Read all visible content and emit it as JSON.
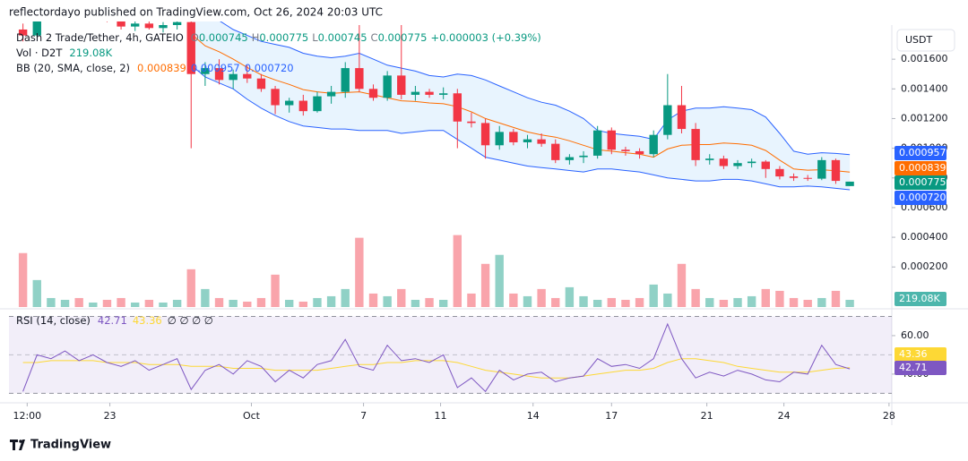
{
  "header": {
    "published": "reflectordayo published on TradingView.com, Oct 26, 2024 20:03 UTC",
    "brand": "TradingView"
  },
  "chart_data": {
    "type": "candlestick",
    "symbol": "Dash 2 Trade/Tether, 4h, GATEIO",
    "ohlc_legend": {
      "o": "O",
      "h": "H",
      "l": "L",
      "c": "C",
      "change": "+0.000003 (+0.39%)"
    },
    "currency": "USDT",
    "x": [
      0,
      1,
      2,
      3,
      4,
      5,
      6,
      7,
      8,
      9,
      10,
      11,
      12,
      13,
      14,
      15,
      16,
      17,
      18,
      19,
      20,
      21,
      22,
      23,
      24,
      25,
      26,
      27,
      28,
      29,
      30,
      31,
      32,
      33,
      34,
      35,
      36,
      37,
      38,
      39,
      40,
      41,
      42,
      43,
      44,
      45,
      46,
      47,
      48,
      49,
      50,
      51,
      52,
      53,
      54,
      55,
      56,
      57,
      58,
      59
    ],
    "xlim": [
      -1,
      62
    ],
    "xticks": [
      {
        "value": 0.3,
        "label": "12:00"
      },
      {
        "value": 6.2,
        "label": "23"
      },
      {
        "value": 16.3,
        "label": "Oct"
      },
      {
        "value": 24.3,
        "label": "7"
      },
      {
        "value": 29.8,
        "label": "11"
      },
      {
        "value": 36.4,
        "label": "14"
      },
      {
        "value": 42.0,
        "label": "17"
      },
      {
        "value": 48.8,
        "label": "21"
      },
      {
        "value": 54.3,
        "label": "24"
      },
      {
        "value": 61.8,
        "label": "28"
      }
    ],
    "open": [
      0.0018,
      0.00176,
      0.00188,
      0.00192,
      0.00195,
      0.00191,
      0.00194,
      0.00187,
      0.00182,
      0.00184,
      0.00181,
      0.00183,
      0.00185,
      0.0015,
      0.00154,
      0.00146,
      0.0015,
      0.00147,
      0.0014,
      0.00129,
      0.00132,
      0.00125,
      0.00135,
      0.00138,
      0.00154,
      0.0014,
      0.00134,
      0.00149,
      0.00136,
      0.00138,
      0.00136,
      0.00137,
      0.00118,
      0.00117,
      0.00102,
      0.00111,
      0.00104,
      0.00106,
      0.00103,
      0.00092,
      0.00094,
      0.00095,
      0.00112,
      0.00099,
      0.00098,
      0.00096,
      0.00109,
      0.00129,
      0.00113,
      0.00092,
      0.00093,
      0.00088,
      0.0009,
      0.00091,
      0.00086,
      0.00081,
      0.0008,
      0.000795,
      0.00092,
      0.000745
    ],
    "high": [
      0.00184,
      0.0019,
      0.00195,
      0.00198,
      0.00199,
      0.00196,
      0.00198,
      0.0019,
      0.00186,
      0.00187,
      0.00185,
      0.00187,
      0.00188,
      0.00158,
      0.0016,
      0.00153,
      0.00156,
      0.0015,
      0.00142,
      0.00134,
      0.00136,
      0.00138,
      0.00142,
      0.00158,
      0.00183,
      0.00143,
      0.00152,
      0.00183,
      0.00142,
      0.0014,
      0.00141,
      0.0014,
      0.00124,
      0.0012,
      0.00115,
      0.00113,
      0.00109,
      0.0011,
      0.00106,
      0.00096,
      0.00098,
      0.00115,
      0.00114,
      0.00101,
      0.001,
      0.00112,
      0.0015,
      0.00142,
      0.00117,
      0.00096,
      0.00095,
      0.00092,
      0.00093,
      0.00092,
      0.00088,
      0.00083,
      0.00082,
      0.00094,
      0.00093,
      0.000775
    ],
    "low": [
      0.00172,
      0.00175,
      0.00186,
      0.00189,
      0.0019,
      0.00188,
      0.00185,
      0.0018,
      0.00179,
      0.0018,
      0.00178,
      0.0018,
      0.001,
      0.00142,
      0.00143,
      0.0014,
      0.00144,
      0.00138,
      0.00123,
      0.00124,
      0.00122,
      0.00124,
      0.0013,
      0.00134,
      0.00138,
      0.00132,
      0.00132,
      0.00133,
      0.00132,
      0.00134,
      0.00133,
      0.001,
      0.00114,
      0.00093,
      0.00099,
      0.00102,
      0.001,
      0.00101,
      0.0009,
      0.00089,
      0.0009,
      0.00093,
      0.00096,
      0.00095,
      0.00093,
      0.00094,
      0.00106,
      0.0011,
      0.00088,
      0.00089,
      0.00086,
      0.00086,
      0.00087,
      0.0008,
      0.00079,
      0.00078,
      0.00078,
      0.000785,
      0.00076,
      0.000745
    ],
    "close": [
      0.00176,
      0.00188,
      0.00192,
      0.00195,
      0.00191,
      0.00194,
      0.00187,
      0.00182,
      0.00184,
      0.00181,
      0.00183,
      0.00185,
      0.0015,
      0.00154,
      0.00146,
      0.0015,
      0.00147,
      0.0014,
      0.00129,
      0.00132,
      0.00125,
      0.00135,
      0.00138,
      0.00154,
      0.0014,
      0.00134,
      0.00149,
      0.00136,
      0.00138,
      0.00136,
      0.00137,
      0.00118,
      0.00117,
      0.00102,
      0.00111,
      0.00104,
      0.00106,
      0.00103,
      0.00092,
      0.00094,
      0.00095,
      0.00112,
      0.00099,
      0.00098,
      0.00096,
      0.00109,
      0.00129,
      0.00113,
      0.00092,
      0.00093,
      0.00088,
      0.0009,
      0.00091,
      0.00086,
      0.00081,
      0.0008,
      0.000795,
      0.00092,
      0.00078,
      0.000775
    ],
    "ylim": [
      -7e-05,
      0.00183
    ],
    "yticks": [
      {
        "value": 0.0016,
        "label": "0.001600"
      },
      {
        "value": 0.0014,
        "label": "0.001400"
      },
      {
        "value": 0.0012,
        "label": "0.001200"
      },
      {
        "value": 0.001,
        "label": "0.001000"
      },
      {
        "value": 0.0008,
        "label": "0.000800"
      },
      {
        "value": 0.0006,
        "label": "0.000600"
      },
      {
        "value": 0.0004,
        "label": "0.000400"
      },
      {
        "value": 0.0002,
        "label": "0.000200"
      }
    ],
    "up_color": "#089981",
    "down_color": "#f23645",
    "bollinger": {
      "name": "BB (20, SMA, close, 2)",
      "band_color": "#2962ff",
      "basis_color": "#ff6d00",
      "fill": "rgba(33,150,243,0.1)",
      "upper": [
        null,
        null,
        null,
        null,
        null,
        null,
        null,
        null,
        null,
        null,
        null,
        null,
        0.00198,
        0.0019,
        0.00186,
        0.0018,
        0.00176,
        0.00172,
        0.0017,
        0.00168,
        0.00164,
        0.00162,
        0.00161,
        0.00162,
        0.00164,
        0.0016,
        0.00156,
        0.00154,
        0.00152,
        0.00149,
        0.00148,
        0.0015,
        0.00149,
        0.00146,
        0.00142,
        0.00138,
        0.00134,
        0.00131,
        0.00129,
        0.00125,
        0.0012,
        0.00112,
        0.0011,
        0.00109,
        0.00108,
        0.00106,
        0.00119,
        0.00125,
        0.00127,
        0.00127,
        0.00128,
        0.00127,
        0.00126,
        0.00121,
        0.0011,
        0.00098,
        0.00096,
        0.00097,
        0.000965,
        0.000957
      ],
      "middle": [
        null,
        null,
        null,
        null,
        null,
        null,
        null,
        null,
        null,
        null,
        null,
        null,
        0.00177,
        0.00169,
        0.00165,
        0.0016,
        0.001545,
        0.001495,
        0.00146,
        0.00143,
        0.001395,
        0.00138,
        0.00137,
        0.001375,
        0.00138,
        0.00136,
        0.00134,
        0.00132,
        0.001315,
        0.001305,
        0.0013,
        0.00128,
        0.001245,
        0.0012,
        0.00117,
        0.00114,
        0.00111,
        0.00109,
        0.001075,
        0.00105,
        0.00102,
        0.00099,
        0.00098,
        0.00097,
        0.00096,
        0.00094,
        0.000995,
        0.00102,
        0.001025,
        0.001025,
        0.001035,
        0.00103,
        0.00102,
        0.000985,
        0.00092,
        0.00086,
        0.000852,
        0.000855,
        0.000848,
        0.000839
      ],
      "lower": [
        null,
        null,
        null,
        null,
        null,
        null,
        null,
        null,
        null,
        null,
        null,
        null,
        0.00156,
        0.00148,
        0.00144,
        0.0014,
        0.00133,
        0.00127,
        0.00122,
        0.00118,
        0.00115,
        0.00114,
        0.00113,
        0.00113,
        0.00112,
        0.00112,
        0.00112,
        0.0011,
        0.00111,
        0.00112,
        0.00112,
        0.00106,
        0.001,
        0.00094,
        0.00092,
        0.0009,
        0.00088,
        0.00087,
        0.00086,
        0.00085,
        0.00084,
        0.00086,
        0.00086,
        0.00085,
        0.00084,
        0.00082,
        0.0008,
        0.00079,
        0.00078,
        0.00078,
        0.00079,
        0.00079,
        0.00078,
        0.00076,
        0.00074,
        0.00074,
        0.000745,
        0.00074,
        0.00073,
        0.00072
      ],
      "lower_last_label": "0.000720"
    },
    "volume": {
      "name": "Vol · D2T",
      "last_label": "219.08K",
      "ylim": [
        0,
        6000000
      ],
      "label_color": "#4db6ac",
      "values": [
        1644000,
        822000,
        274000,
        219200,
        274000,
        137000,
        219200,
        274000,
        137000,
        219200,
        137000,
        219200,
        1150800,
        548000,
        274000,
        219200,
        164400,
        274000,
        986400,
        219200,
        164400,
        274000,
        328800,
        548000,
        2109800,
        411000,
        328800,
        548000,
        219200,
        274000,
        219200,
        2192000,
        411000,
        1315200,
        1589200,
        411000,
        328800,
        548000,
        274000,
        602800,
        328800,
        219200,
        274000,
        219200,
        274000,
        685000,
        411000,
        1315200,
        548000,
        274000,
        219200,
        274000,
        328800,
        548000,
        493200,
        274000,
        219200,
        274000,
        493200,
        219080
      ]
    },
    "rsi": {
      "name": "RSI (14, close)",
      "extra": "∅ ∅ ∅ ∅",
      "color": "#7e57c2",
      "ma_color": "#fdd835",
      "ylim": [
        26,
        73
      ],
      "yticks": [
        {
          "value": 60,
          "label": "60.00"
        },
        {
          "value": 40,
          "label": "40.00"
        }
      ],
      "bands": [
        70,
        50,
        30
      ],
      "values": [
        31,
        50,
        48,
        52,
        47,
        50,
        46,
        44,
        47,
        42,
        45,
        48,
        32,
        42,
        45,
        40,
        47,
        44,
        36,
        42,
        38,
        45,
        47,
        58,
        44,
        42,
        55,
        47,
        48,
        46,
        50,
        33,
        38,
        31,
        42,
        37,
        40,
        41,
        36,
        38,
        39,
        48,
        44,
        45,
        43,
        48,
        66,
        48,
        38,
        41,
        39,
        42,
        40,
        37,
        36,
        41,
        40,
        55,
        45,
        42.71
      ],
      "ma": [
        46,
        46,
        47,
        47,
        47,
        47,
        46,
        46,
        46,
        45,
        45,
        45,
        44,
        44,
        44,
        43,
        43,
        43,
        42,
        42,
        42,
        42,
        43,
        44,
        45,
        45,
        46,
        46,
        47,
        47,
        47,
        46,
        44,
        42,
        41,
        40,
        39,
        38,
        38,
        38,
        39,
        40,
        41,
        42,
        42,
        43,
        46,
        48,
        48,
        47,
        46,
        44,
        43,
        42,
        41,
        41,
        41,
        42,
        43,
        43.36
      ]
    }
  }
}
